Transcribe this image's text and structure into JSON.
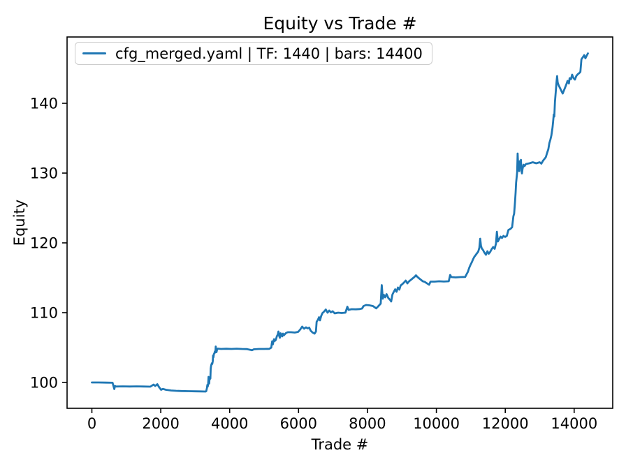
{
  "chart_data": {
    "type": "line",
    "title": "Equity vs Trade #",
    "xlabel": "Trade #",
    "ylabel": "Equity",
    "xlim": [
      -720,
      15120
    ],
    "ylim": [
      96.3,
      149.5
    ],
    "x_ticks": [
      0,
      2000,
      4000,
      6000,
      8000,
      10000,
      12000,
      14000
    ],
    "x_tick_labels": [
      "0",
      "2000",
      "4000",
      "6000",
      "8000",
      "10000",
      "12000",
      "14000"
    ],
    "y_ticks": [
      100,
      110,
      120,
      130,
      140
    ],
    "y_tick_labels": [
      "100",
      "110",
      "120",
      "130",
      "140"
    ],
    "grid": false,
    "legend_position": "upper left",
    "axis_color": "#000000",
    "legend_border_color": "#cccccc",
    "series": [
      {
        "name": "cfg_merged.yaml | TF: 1440 | bars: 14400",
        "color": "#1f77b4",
        "points": [
          [
            0,
            100.0
          ],
          [
            200,
            100.0
          ],
          [
            400,
            99.98
          ],
          [
            600,
            99.96
          ],
          [
            628,
            99.45
          ],
          [
            652,
            99.05
          ],
          [
            672,
            99.5
          ],
          [
            700,
            99.42
          ],
          [
            900,
            99.44
          ],
          [
            1100,
            99.42
          ],
          [
            1300,
            99.44
          ],
          [
            1500,
            99.42
          ],
          [
            1700,
            99.4
          ],
          [
            1790,
            99.7
          ],
          [
            1840,
            99.5
          ],
          [
            1900,
            99.75
          ],
          [
            1955,
            99.3
          ],
          [
            2010,
            98.95
          ],
          [
            2060,
            99.08
          ],
          [
            2150,
            98.95
          ],
          [
            2300,
            98.85
          ],
          [
            2450,
            98.8
          ],
          [
            2600,
            98.77
          ],
          [
            2800,
            98.75
          ],
          [
            3000,
            98.73
          ],
          [
            3150,
            98.72
          ],
          [
            3300,
            98.7
          ],
          [
            3320,
            98.76
          ],
          [
            3340,
            99.2
          ],
          [
            3352,
            99.65
          ],
          [
            3362,
            99.4
          ],
          [
            3375,
            99.7
          ],
          [
            3388,
            100.8
          ],
          [
            3398,
            100.15
          ],
          [
            3406,
            99.85
          ],
          [
            3416,
            100.5
          ],
          [
            3428,
            100.65
          ],
          [
            3440,
            100.55
          ],
          [
            3450,
            102.0
          ],
          [
            3460,
            102.35
          ],
          [
            3472,
            102.6
          ],
          [
            3484,
            102.75
          ],
          [
            3495,
            102.65
          ],
          [
            3508,
            103.0
          ],
          [
            3518,
            103.85
          ],
          [
            3528,
            103.6
          ],
          [
            3542,
            104.05
          ],
          [
            3558,
            104.2
          ],
          [
            3572,
            104.45
          ],
          [
            3585,
            104.3
          ],
          [
            3596,
            105.15
          ],
          [
            3606,
            104.55
          ],
          [
            3618,
            104.35
          ],
          [
            3634,
            104.7
          ],
          [
            3655,
            104.85
          ],
          [
            3750,
            104.8
          ],
          [
            3900,
            104.83
          ],
          [
            4050,
            104.8
          ],
          [
            4200,
            104.84
          ],
          [
            4350,
            104.8
          ],
          [
            4500,
            104.78
          ],
          [
            4650,
            104.62
          ],
          [
            4700,
            104.75
          ],
          [
            4850,
            104.8
          ],
          [
            5000,
            104.8
          ],
          [
            5150,
            104.82
          ],
          [
            5209,
            105.0
          ],
          [
            5222,
            105.55
          ],
          [
            5235,
            105.9
          ],
          [
            5252,
            105.45
          ],
          [
            5270,
            105.8
          ],
          [
            5288,
            106.2
          ],
          [
            5310,
            105.95
          ],
          [
            5340,
            106.1
          ],
          [
            5368,
            106.6
          ],
          [
            5398,
            106.9
          ],
          [
            5415,
            107.3
          ],
          [
            5442,
            106.6
          ],
          [
            5458,
            106.4
          ],
          [
            5478,
            107.05
          ],
          [
            5502,
            106.85
          ],
          [
            5524,
            106.6
          ],
          [
            5548,
            107.0
          ],
          [
            5572,
            106.75
          ],
          [
            5600,
            106.9
          ],
          [
            5640,
            107.1
          ],
          [
            5690,
            107.2
          ],
          [
            5780,
            107.2
          ],
          [
            5890,
            107.15
          ],
          [
            5990,
            107.25
          ],
          [
            6050,
            107.6
          ],
          [
            6105,
            108.0
          ],
          [
            6160,
            107.7
          ],
          [
            6215,
            107.9
          ],
          [
            6265,
            107.75
          ],
          [
            6310,
            107.85
          ],
          [
            6355,
            107.4
          ],
          [
            6410,
            107.15
          ],
          [
            6465,
            107.0
          ],
          [
            6505,
            107.3
          ],
          [
            6525,
            108.7
          ],
          [
            6560,
            108.95
          ],
          [
            6595,
            109.35
          ],
          [
            6622,
            108.9
          ],
          [
            6658,
            109.55
          ],
          [
            6695,
            109.95
          ],
          [
            6740,
            110.15
          ],
          [
            6790,
            110.45
          ],
          [
            6840,
            110.0
          ],
          [
            6890,
            110.3
          ],
          [
            6940,
            110.05
          ],
          [
            6990,
            110.2
          ],
          [
            7050,
            109.9
          ],
          [
            7150,
            110.0
          ],
          [
            7250,
            109.95
          ],
          [
            7360,
            110.0
          ],
          [
            7418,
            110.85
          ],
          [
            7452,
            110.4
          ],
          [
            7540,
            110.5
          ],
          [
            7660,
            110.48
          ],
          [
            7780,
            110.52
          ],
          [
            7845,
            110.6
          ],
          [
            7885,
            110.95
          ],
          [
            7960,
            111.1
          ],
          [
            8060,
            111.05
          ],
          [
            8160,
            110.95
          ],
          [
            8255,
            110.62
          ],
          [
            8320,
            110.95
          ],
          [
            8385,
            111.3
          ],
          [
            8415,
            113.95
          ],
          [
            8445,
            112.0
          ],
          [
            8475,
            112.55
          ],
          [
            8515,
            112.2
          ],
          [
            8555,
            112.65
          ],
          [
            8605,
            112.1
          ],
          [
            8655,
            111.85
          ],
          [
            8688,
            111.6
          ],
          [
            8725,
            112.6
          ],
          [
            8765,
            113.0
          ],
          [
            8805,
            113.35
          ],
          [
            8845,
            113.0
          ],
          [
            8885,
            113.6
          ],
          [
            8925,
            113.3
          ],
          [
            8965,
            113.9
          ],
          [
            9015,
            114.1
          ],
          [
            9065,
            114.35
          ],
          [
            9110,
            114.6
          ],
          [
            9160,
            114.2
          ],
          [
            9210,
            114.5
          ],
          [
            9260,
            114.7
          ],
          [
            9310,
            114.9
          ],
          [
            9360,
            115.1
          ],
          [
            9408,
            115.35
          ],
          [
            9455,
            115.1
          ],
          [
            9505,
            114.9
          ],
          [
            9555,
            114.7
          ],
          [
            9605,
            114.5
          ],
          [
            9660,
            114.42
          ],
          [
            9790,
            114.0
          ],
          [
            9830,
            114.45
          ],
          [
            9950,
            114.45
          ],
          [
            10080,
            114.5
          ],
          [
            10220,
            114.46
          ],
          [
            10360,
            114.5
          ],
          [
            10400,
            115.4
          ],
          [
            10435,
            115.1
          ],
          [
            10560,
            115.05
          ],
          [
            10700,
            115.1
          ],
          [
            10838,
            115.12
          ],
          [
            10878,
            115.5
          ],
          [
            10915,
            115.85
          ],
          [
            10952,
            116.4
          ],
          [
            10990,
            116.85
          ],
          [
            11028,
            117.2
          ],
          [
            11065,
            117.65
          ],
          [
            11103,
            118.0
          ],
          [
            11140,
            118.25
          ],
          [
            11178,
            118.5
          ],
          [
            11215,
            118.75
          ],
          [
            11248,
            119.3
          ],
          [
            11272,
            120.6
          ],
          [
            11295,
            119.6
          ],
          [
            11320,
            119.2
          ],
          [
            11352,
            119.0
          ],
          [
            11390,
            118.65
          ],
          [
            11440,
            118.3
          ],
          [
            11482,
            118.8
          ],
          [
            11522,
            118.45
          ],
          [
            11562,
            118.7
          ],
          [
            11605,
            119.1
          ],
          [
            11650,
            119.4
          ],
          [
            11692,
            119.15
          ],
          [
            11730,
            119.9
          ],
          [
            11758,
            121.6
          ],
          [
            11785,
            120.2
          ],
          [
            11825,
            120.55
          ],
          [
            11865,
            120.9
          ],
          [
            11905,
            120.7
          ],
          [
            11948,
            121.0
          ],
          [
            11995,
            120.85
          ],
          [
            12045,
            121.0
          ],
          [
            12092,
            121.85
          ],
          [
            12150,
            122.0
          ],
          [
            12200,
            122.25
          ],
          [
            12235,
            123.8
          ],
          [
            12258,
            124.2
          ],
          [
            12282,
            125.8
          ],
          [
            12300,
            127.2
          ],
          [
            12315,
            128.6
          ],
          [
            12330,
            129.3
          ],
          [
            12345,
            130.1
          ],
          [
            12360,
            132.8
          ],
          [
            12374,
            131.2
          ],
          [
            12388,
            130.4
          ],
          [
            12404,
            130.3
          ],
          [
            12420,
            131.7
          ],
          [
            12436,
            130.9
          ],
          [
            12455,
            131.9
          ],
          [
            12470,
            130.35
          ],
          [
            12485,
            129.95
          ],
          [
            12502,
            130.6
          ],
          [
            12530,
            131.2
          ],
          [
            12560,
            131.0
          ],
          [
            12600,
            131.3
          ],
          [
            12700,
            131.4
          ],
          [
            12800,
            131.55
          ],
          [
            12900,
            131.4
          ],
          [
            13000,
            131.55
          ],
          [
            13048,
            131.35
          ],
          [
            13100,
            131.8
          ],
          [
            13150,
            132.1
          ],
          [
            13180,
            132.3
          ],
          [
            13215,
            132.9
          ],
          [
            13250,
            133.4
          ],
          [
            13280,
            134.3
          ],
          [
            13310,
            134.8
          ],
          [
            13340,
            135.4
          ],
          [
            13372,
            136.5
          ],
          [
            13392,
            137.5
          ],
          [
            13408,
            138.4
          ],
          [
            13425,
            138.1
          ],
          [
            13442,
            140.2
          ],
          [
            13458,
            141.2
          ],
          [
            13475,
            142.2
          ],
          [
            13492,
            143.2
          ],
          [
            13505,
            143.9
          ],
          [
            13522,
            143.0
          ],
          [
            13548,
            142.6
          ],
          [
            13588,
            142.2
          ],
          [
            13628,
            141.8
          ],
          [
            13668,
            141.4
          ],
          [
            13708,
            141.9
          ],
          [
            13748,
            142.4
          ],
          [
            13788,
            142.9
          ],
          [
            13808,
            143.2
          ],
          [
            13848,
            142.85
          ],
          [
            13868,
            143.6
          ],
          [
            13908,
            143.45
          ],
          [
            13942,
            144.1
          ],
          [
            13982,
            143.6
          ],
          [
            14022,
            143.4
          ],
          [
            14062,
            143.9
          ],
          [
            14102,
            144.15
          ],
          [
            14142,
            144.3
          ],
          [
            14180,
            144.5
          ],
          [
            14212,
            146.3
          ],
          [
            14252,
            146.6
          ],
          [
            14292,
            146.9
          ],
          [
            14328,
            146.45
          ],
          [
            14362,
            146.8
          ],
          [
            14400,
            147.15
          ]
        ]
      }
    ]
  }
}
